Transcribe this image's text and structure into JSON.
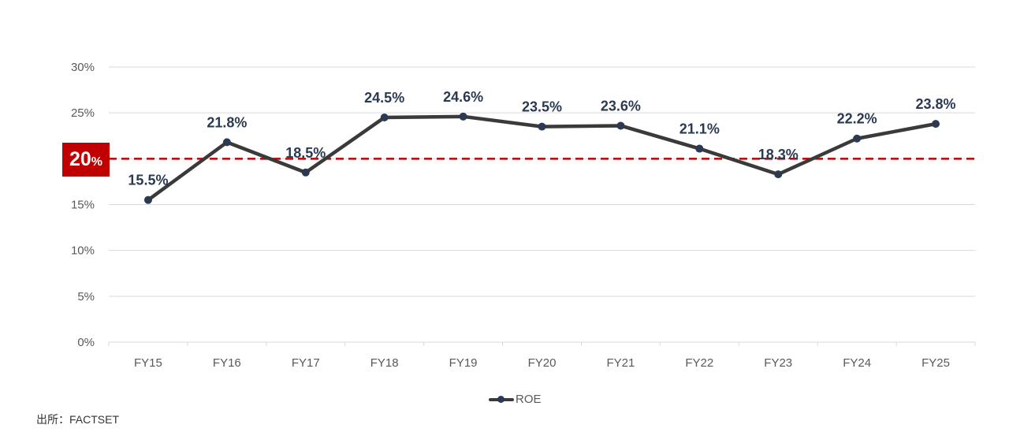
{
  "chart_data": {
    "type": "line",
    "categories": [
      "FY15",
      "FY16",
      "FY17",
      "FY18",
      "FY19",
      "FY20",
      "FY21",
      "FY22",
      "FY23",
      "FY24",
      "FY25"
    ],
    "series": [
      {
        "name": "ROE",
        "values": [
          15.5,
          21.8,
          18.5,
          24.5,
          24.6,
          23.5,
          23.6,
          21.1,
          18.3,
          22.2,
          23.8
        ],
        "labels": [
          "15.5%",
          "21.8%",
          "18.5%",
          "24.5%",
          "24.6%",
          "23.5%",
          "23.6%",
          "21.1%",
          "18.3%",
          "22.2%",
          "23.8%"
        ]
      }
    ],
    "yticks": [
      "0%",
      "5%",
      "10%",
      "15%",
      "20%",
      "25%",
      "30%"
    ],
    "ylim": [
      0,
      30
    ],
    "grid": true,
    "legend_position": "bottom",
    "threshold": {
      "value": 20,
      "label_number": "20",
      "label_unit": "%",
      "color": "#c00000"
    },
    "line_color": "#3a3a3a",
    "marker_color": "#2b3a52",
    "label_color": "#2b3a52"
  },
  "source_note": "出所：FACTSET"
}
